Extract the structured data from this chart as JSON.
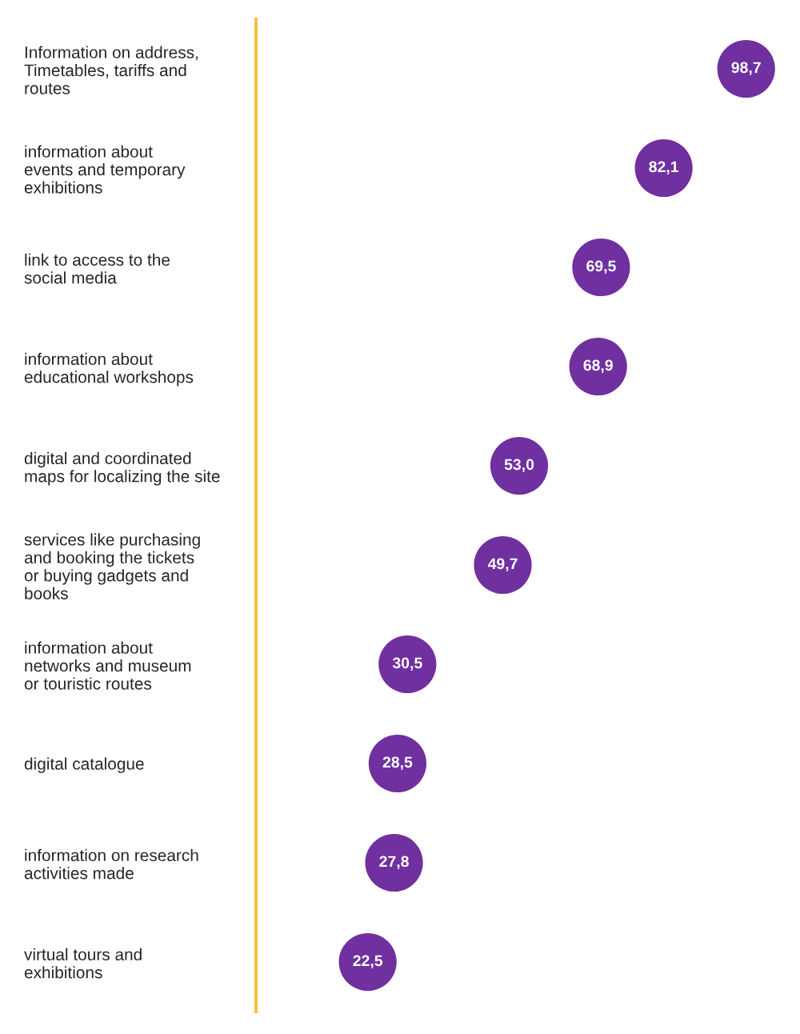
{
  "chart_data": {
    "type": "scatter",
    "orientation": "horizontal",
    "categories": [
      "Information on address,\nTimetables, tariffs and\nroutes",
      "information about\nevents and temporary\nexhibitions",
      "link to access to the\nsocial media",
      "information about\neducational workshops",
      "digital and coordinated\nmaps for localizing the site",
      "services like purchasing\nand booking the tickets\nor buying gadgets and\nbooks",
      "information about\nnetworks and museum\nor touristic routes",
      "digital catalogue",
      "information on research\nactivities made",
      "virtual tours and\nexhibitions"
    ],
    "values": [
      98.7,
      82.1,
      69.5,
      68.9,
      53.0,
      49.7,
      30.5,
      28.5,
      27.8,
      22.5
    ],
    "value_labels": [
      "98,7",
      "82,1",
      "69,5",
      "68,9",
      "53,0",
      "49,7",
      "30,5",
      "28,5",
      "27,8",
      "22,5"
    ],
    "color": "#7030a0",
    "tick_labels": "y",
    "marker": "circle"
  }
}
